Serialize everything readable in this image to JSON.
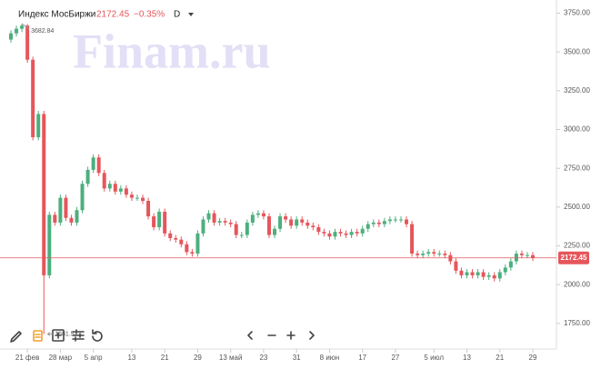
{
  "chart_data": {
    "type": "candlestick",
    "title": "Индекс МосБиржи",
    "change": "−0.35%",
    "interval": "D",
    "watermark": "Finam.ru",
    "categories": [
      null,
      null,
      null,
      "21 фев",
      null,
      null,
      null,
      null,
      null,
      "28 мар",
      null,
      null,
      null,
      null,
      null,
      "5 апр",
      null,
      null,
      null,
      null,
      null,
      null,
      "13",
      null,
      null,
      null,
      null,
      null,
      "21",
      null,
      null,
      null,
      null,
      null,
      "29",
      null,
      null,
      null,
      null,
      null,
      "13 май",
      null,
      null,
      null,
      null,
      null,
      "23",
      null,
      null,
      null,
      null,
      null,
      "31",
      null,
      null,
      null,
      null,
      null,
      "8 июн",
      null,
      null,
      null,
      null,
      null,
      "17",
      null,
      null,
      null,
      null,
      null,
      "27",
      null,
      null,
      null,
      null,
      null,
      null,
      "5 июл",
      null,
      null,
      null,
      null,
      null,
      "13",
      null,
      null,
      null,
      null,
      null,
      "21",
      null,
      null,
      null,
      null,
      null,
      "29"
    ],
    "open": [
      3580,
      3620,
      3650,
      3670,
      3450,
      2950,
      3100,
      2060,
      2450,
      2400,
      2560,
      2430,
      2400,
      2480,
      2650,
      2740,
      2820,
      2720,
      2620,
      2650,
      2600,
      2620,
      2580,
      2560,
      2560,
      2540,
      2440,
      2370,
      2470,
      2330,
      2300,
      2290,
      2260,
      2210,
      2200,
      2330,
      2420,
      2460,
      2400,
      2410,
      2400,
      2390,
      2320,
      2320,
      2400,
      2450,
      2460,
      2440,
      2320,
      2360,
      2440,
      2420,
      2380,
      2420,
      2400,
      2380,
      2370,
      2340,
      2330,
      2310,
      2340,
      2330,
      2320,
      2340,
      2330,
      2360,
      2390,
      2400,
      2390,
      2410,
      2420,
      2420,
      2420,
      2390,
      2200,
      2190,
      2200,
      2210,
      2200,
      2200,
      2190,
      2150,
      2090,
      2060,
      2080,
      2060,
      2080,
      2050,
      2060,
      2040,
      2080,
      2110,
      2150,
      2200,
      2190,
      2190
    ],
    "high": [
      3640,
      3670,
      3682.84,
      3680,
      3470,
      3120,
      3120,
      2470,
      2470,
      2580,
      2580,
      2450,
      2500,
      2670,
      2760,
      2840,
      2840,
      2740,
      2670,
      2670,
      2640,
      2640,
      2600,
      2580,
      2580,
      2560,
      2460,
      2490,
      2490,
      2350,
      2320,
      2310,
      2280,
      2230,
      2350,
      2440,
      2480,
      2480,
      2430,
      2430,
      2420,
      2410,
      2340,
      2420,
      2470,
      2480,
      2480,
      2460,
      2380,
      2460,
      2460,
      2440,
      2440,
      2440,
      2420,
      2400,
      2390,
      2360,
      2350,
      2360,
      2360,
      2350,
      2360,
      2360,
      2380,
      2410,
      2420,
      2420,
      2430,
      2440,
      2440,
      2440,
      2440,
      2410,
      2220,
      2220,
      2230,
      2230,
      2220,
      2220,
      2210,
      2170,
      2110,
      2100,
      2100,
      2100,
      2100,
      2080,
      2080,
      2100,
      2130,
      2170,
      2220,
      2220,
      2210,
      2210
    ],
    "low": [
      3560,
      3600,
      3630,
      3430,
      2930,
      2930,
      1681.57,
      2040,
      2380,
      2380,
      2410,
      2380,
      2380,
      2460,
      2630,
      2720,
      2700,
      2600,
      2600,
      2580,
      2580,
      2560,
      2540,
      2540,
      2520,
      2420,
      2350,
      2350,
      2310,
      2280,
      2270,
      2240,
      2190,
      2180,
      2180,
      2310,
      2400,
      2380,
      2380,
      2380,
      2370,
      2300,
      2300,
      2300,
      2380,
      2430,
      2420,
      2300,
      2300,
      2340,
      2400,
      2360,
      2360,
      2380,
      2360,
      2350,
      2320,
      2310,
      2290,
      2290,
      2310,
      2300,
      2300,
      2310,
      2310,
      2340,
      2370,
      2370,
      2370,
      2390,
      2400,
      2400,
      2370,
      2180,
      2170,
      2170,
      2180,
      2180,
      2180,
      2170,
      2130,
      2070,
      2040,
      2040,
      2040,
      2040,
      2030,
      2030,
      2020,
      2020,
      2060,
      2090,
      2130,
      2170,
      2170,
      2152.45
    ],
    "close": [
      3620,
      3650,
      3670,
      3450,
      2950,
      3100,
      2060,
      2450,
      2400,
      2560,
      2430,
      2400,
      2480,
      2650,
      2740,
      2820,
      2720,
      2620,
      2650,
      2600,
      2620,
      2580,
      2560,
      2560,
      2540,
      2440,
      2370,
      2470,
      2330,
      2300,
      2290,
      2260,
      2210,
      2200,
      2330,
      2420,
      2460,
      2400,
      2410,
      2400,
      2390,
      2320,
      2320,
      2400,
      2450,
      2460,
      2440,
      2320,
      2360,
      2440,
      2420,
      2380,
      2420,
      2400,
      2380,
      2370,
      2340,
      2330,
      2310,
      2340,
      2330,
      2320,
      2340,
      2330,
      2360,
      2390,
      2400,
      2390,
      2410,
      2420,
      2420,
      2420,
      2390,
      2200,
      2190,
      2200,
      2210,
      2200,
      2200,
      2190,
      2150,
      2090,
      2060,
      2080,
      2060,
      2080,
      2050,
      2060,
      2040,
      2080,
      2110,
      2150,
      2200,
      2190,
      2190,
      2172.45
    ],
    "up_color": "#4caf7d",
    "down_color": "#e5565b",
    "ylim": [
      1620,
      3800
    ],
    "yticks": [
      {
        "value": 1750,
        "label": "1750.00"
      },
      {
        "value": 2000,
        "label": "2000.00"
      },
      {
        "value": 2250,
        "label": "2250.00"
      },
      {
        "value": 2500,
        "label": "2500.00"
      },
      {
        "value": 2750,
        "label": "2750.00"
      },
      {
        "value": 3000,
        "label": "3000.00"
      },
      {
        "value": 3250,
        "label": "3250.00"
      },
      {
        "value": 3500,
        "label": "3500.00"
      },
      {
        "value": 3750,
        "label": "3750.00"
      }
    ],
    "grid": false
  }
}
